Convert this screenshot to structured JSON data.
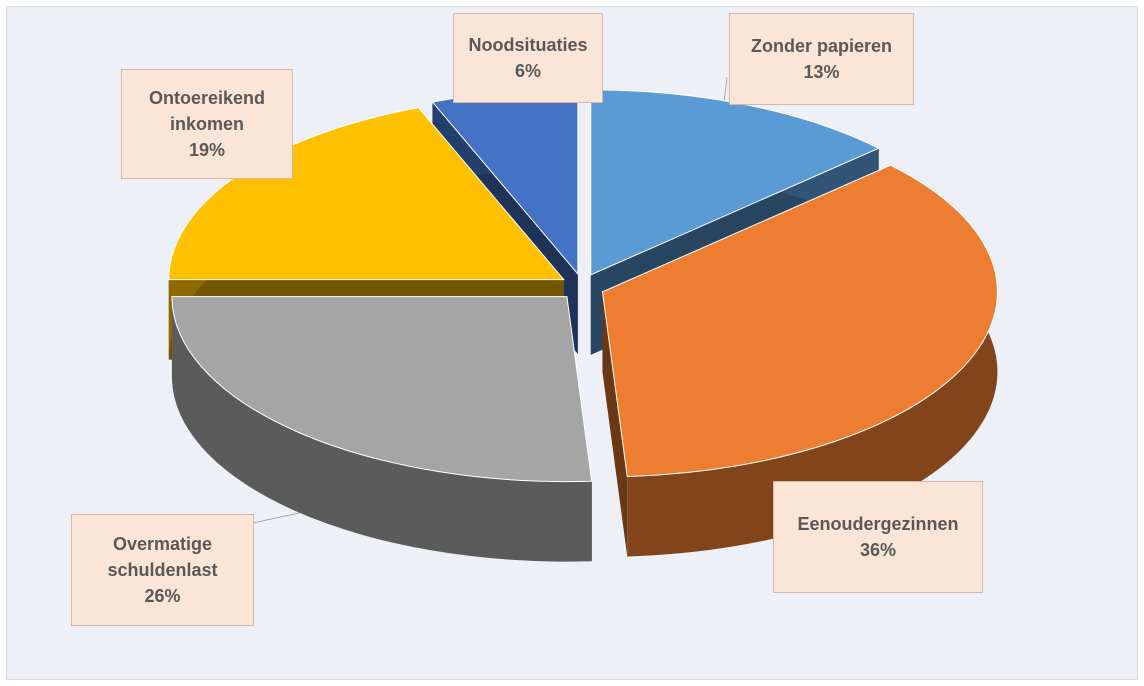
{
  "chart_data": {
    "type": "pie3d",
    "categories": [
      "Zonder papieren",
      "Eenoudergezinnen",
      "Overmatige schuldenlast",
      "Ontoereikend inkomen",
      "Noodsituaties"
    ],
    "values": [
      13,
      36,
      26,
      19,
      6
    ],
    "value_labels": [
      "13%",
      "36%",
      "26%",
      "19%",
      "6%"
    ],
    "colors": [
      "#5b9bd5",
      "#ed7d31",
      "#a5a5a5",
      "#ffc000",
      "#4472c4"
    ]
  }
}
